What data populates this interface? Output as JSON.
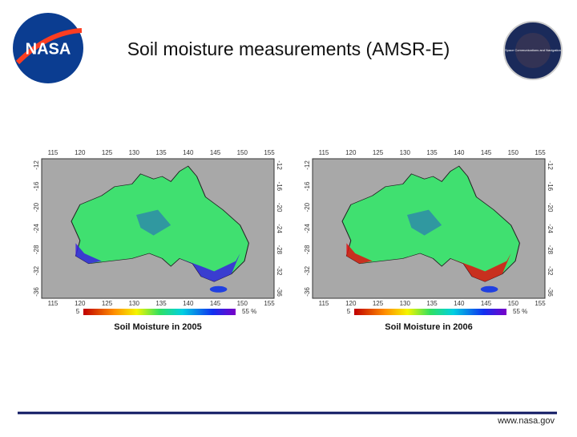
{
  "header": {
    "title": "Soil moisture measurements (AMSR-E)",
    "logo_left": "NASA",
    "logo_right": "Space Communications and Navigation"
  },
  "maps": [
    {
      "caption": "Soil Moisture in 2005",
      "scale_min": "5",
      "scale_max": "55 %",
      "lon_ticks": [
        "115",
        "120",
        "125",
        "130",
        "135",
        "140",
        "145",
        "150",
        "155"
      ],
      "lat_ticks": [
        "-12",
        "-16",
        "-20",
        "-24",
        "-28",
        "-32",
        "-36"
      ]
    },
    {
      "caption": "Soil Moisture in 2006",
      "scale_min": "5",
      "scale_max": "55 %",
      "lon_ticks": [
        "115",
        "120",
        "125",
        "130",
        "135",
        "140",
        "145",
        "150",
        "155"
      ],
      "lat_ticks": [
        "-12",
        "-16",
        "-20",
        "-24",
        "-28",
        "-32",
        "-36"
      ]
    }
  ],
  "footer": {
    "url": "www.nasa.gov"
  }
}
